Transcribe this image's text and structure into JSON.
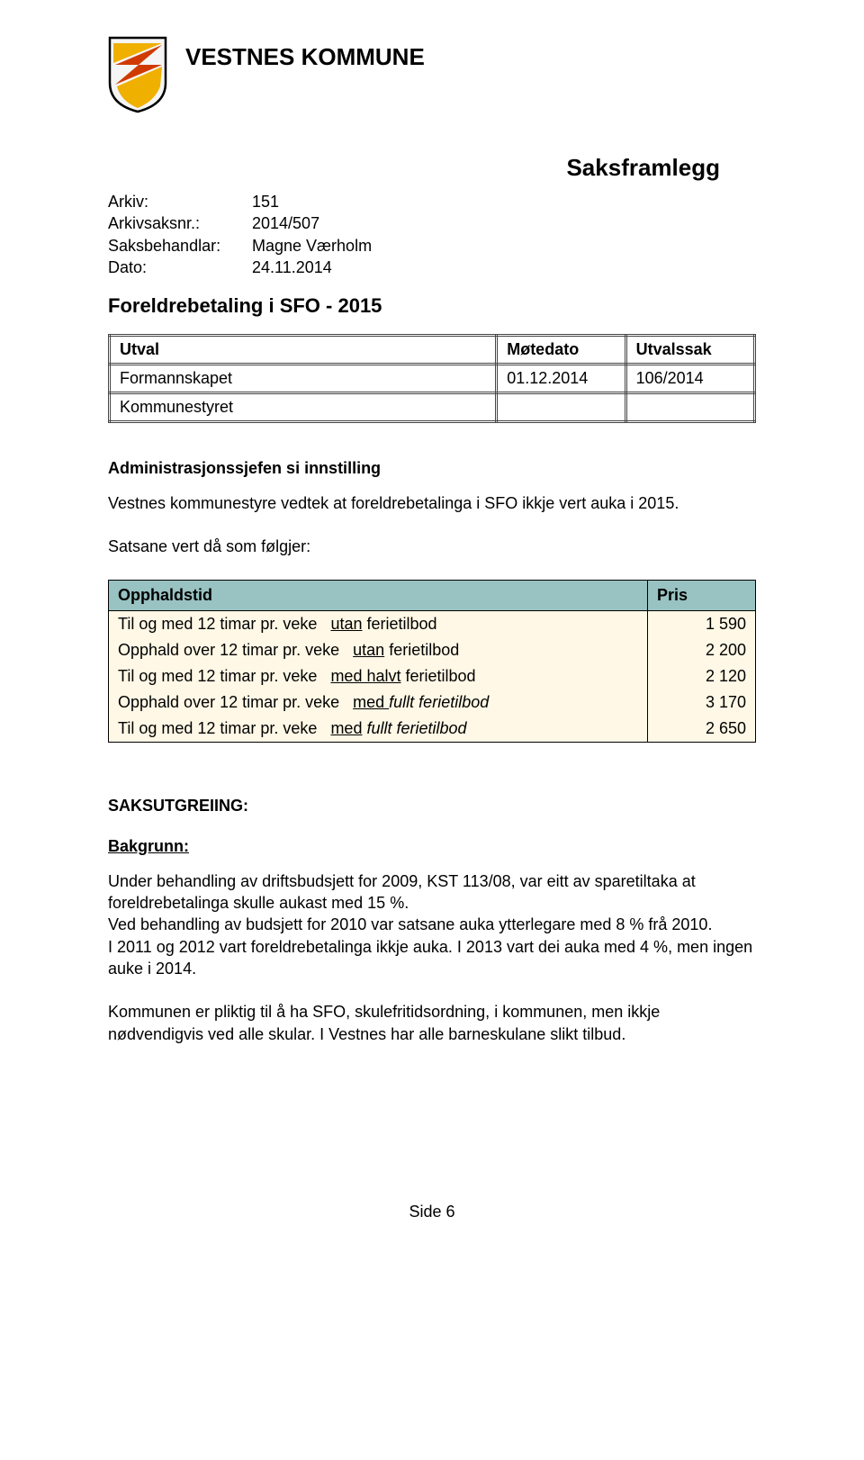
{
  "header": {
    "org": "VESTNES KOMMUNE",
    "doc_type": "Saksframlegg",
    "shield": {
      "outline": "#000000",
      "band_top": "#f0b000",
      "band_mid": "#d03a00",
      "band_bot": "#f0b000",
      "bg": "#f5f5f5"
    }
  },
  "meta": {
    "arkiv_label": "Arkiv:",
    "arkiv_value": "151",
    "arkivsaksnr_label": "Arkivsaksnr.:",
    "arkivsaksnr_value": "2014/507",
    "saksbehandlar_label": "Saksbehandlar:",
    "saksbehandlar_value": "Magne Værholm",
    "dato_label": "Dato:",
    "dato_value": "24.11.2014"
  },
  "title": "Foreldrebetaling i SFO - 2015",
  "meeting_table": {
    "columns": [
      "Utval",
      "Møtedato",
      "Utvalssak"
    ],
    "rows": [
      [
        "Formannskapet",
        "01.12.2014",
        "106/2014"
      ],
      [
        "Kommunestyret",
        "",
        ""
      ]
    ],
    "col_widths": [
      "60%",
      "20%",
      "20%"
    ]
  },
  "recommendation": {
    "heading": "Administrasjonssjefen si innstilling",
    "text": "Vestnes kommunestyre vedtek at foreldrebetalinga i SFO ikkje vert auka i 2015.",
    "intro": "Satsane vert då som følgjer:"
  },
  "rates": {
    "col_opphaldstid": "Opphaldstid",
    "col_pris": "Pris",
    "header_bg": "#99c2c2",
    "row_bg": "#fff8e6",
    "border_color": "#000000",
    "rows": [
      {
        "lead": "Til og med 12 timar pr. veke",
        "qual_u": "utan",
        "tail": " ferietilbod",
        "price": "1 590"
      },
      {
        "lead": "Opphald over 12 timar pr. veke",
        "qual_u": "utan",
        "tail": " ferietilbod",
        "price": "2 200"
      },
      {
        "lead": "Til og med 12 timar pr. veke",
        "qual_u": "med halvt",
        "tail": " ferietilbod",
        "price": "2 120"
      },
      {
        "lead": "Opphald over 12 timar pr. veke",
        "qual_u": "med ",
        "em_tail": "fullt ferietilbod",
        "price": "3 170"
      },
      {
        "lead": "Til og med 12 timar pr. veke",
        "qual_u": "med",
        "em_tail": " fullt ferietilbod",
        "price": "2 650"
      }
    ]
  },
  "saks": {
    "heading": "SAKSUTGREIING:",
    "bakgrunn_heading": "Bakgrunn:",
    "p1": "Under behandling av driftsbudsjett for 2009, KST 113/08, var eitt av sparetiltaka at foreldrebetalinga skulle aukast med 15 %.",
    "p2": "Ved behandling av budsjett for 2010 var satsane auka ytterlegare med 8 % frå 2010.",
    "p3": "I 2011 og 2012 vart foreldrebetalinga ikkje auka. I 2013 vart dei auka med 4 %, men ingen auke i 2014.",
    "p4": "Kommunen er pliktig til å ha SFO, skulefritidsordning, i kommunen, men ikkje nødvendigvis ved alle skular. I Vestnes har alle barneskulane slikt tilbud."
  },
  "footer": "Side 6"
}
